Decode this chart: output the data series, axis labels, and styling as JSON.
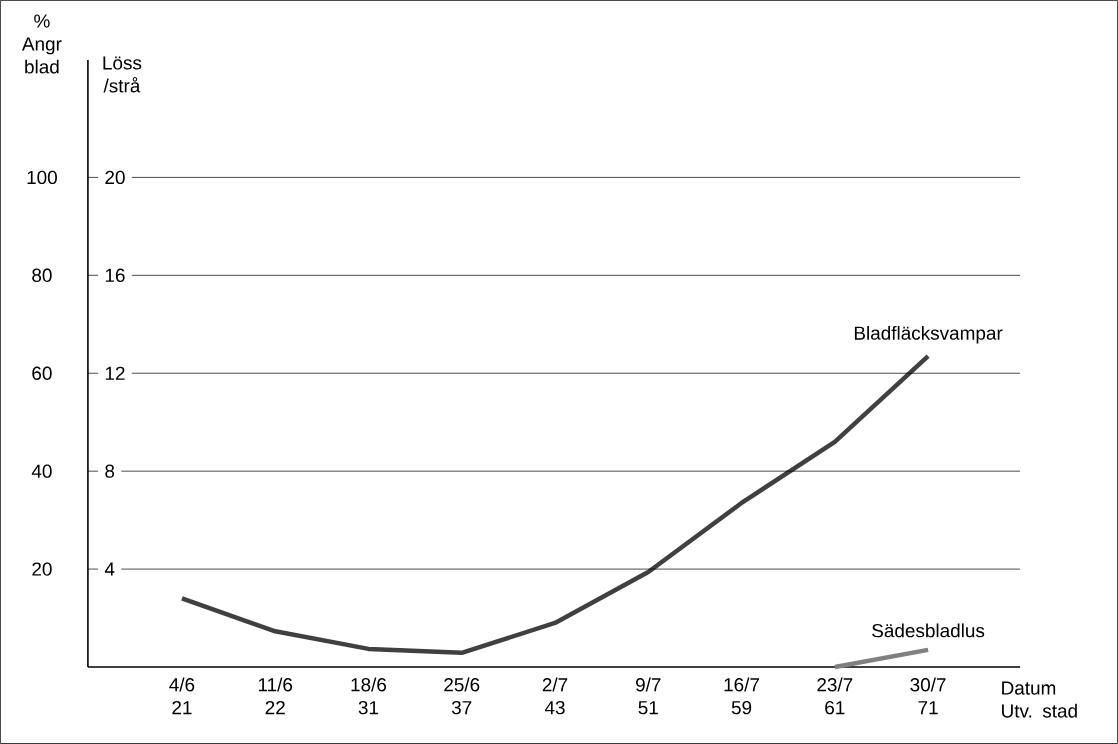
{
  "chart_data": {
    "type": "line",
    "categories": [
      "4/6 21",
      "11/6 22",
      "18/6 31",
      "25/6 37",
      "2/7 43",
      "9/7 51",
      "16/7 59",
      "23/7 61",
      "30/7 71"
    ],
    "xlabel": "Datum Utv. stad",
    "ylabel": "% Angr blad",
    "y2label": "Löss /strå",
    "series": [
      {
        "name": "Bladfläcksvampar",
        "color": "#404040",
        "values": [
          14,
          7.3,
          3.7,
          2.9,
          9,
          19.4,
          33.5,
          46,
          63.5
        ]
      },
      {
        "name": "Sädesbladlus",
        "color": "#808080",
        "axis": "y2",
        "values": [
          null,
          null,
          null,
          null,
          null,
          null,
          null,
          0,
          0.7
        ]
      }
    ],
    "ylim": [
      0,
      124
    ],
    "yticks": [
      20,
      40,
      60,
      80,
      100
    ],
    "y2lim": [
      0,
      24.8
    ],
    "y2ticks": [
      4,
      8,
      12,
      16,
      20
    ],
    "grid": "y",
    "line_style": "solid",
    "marker": "none"
  }
}
